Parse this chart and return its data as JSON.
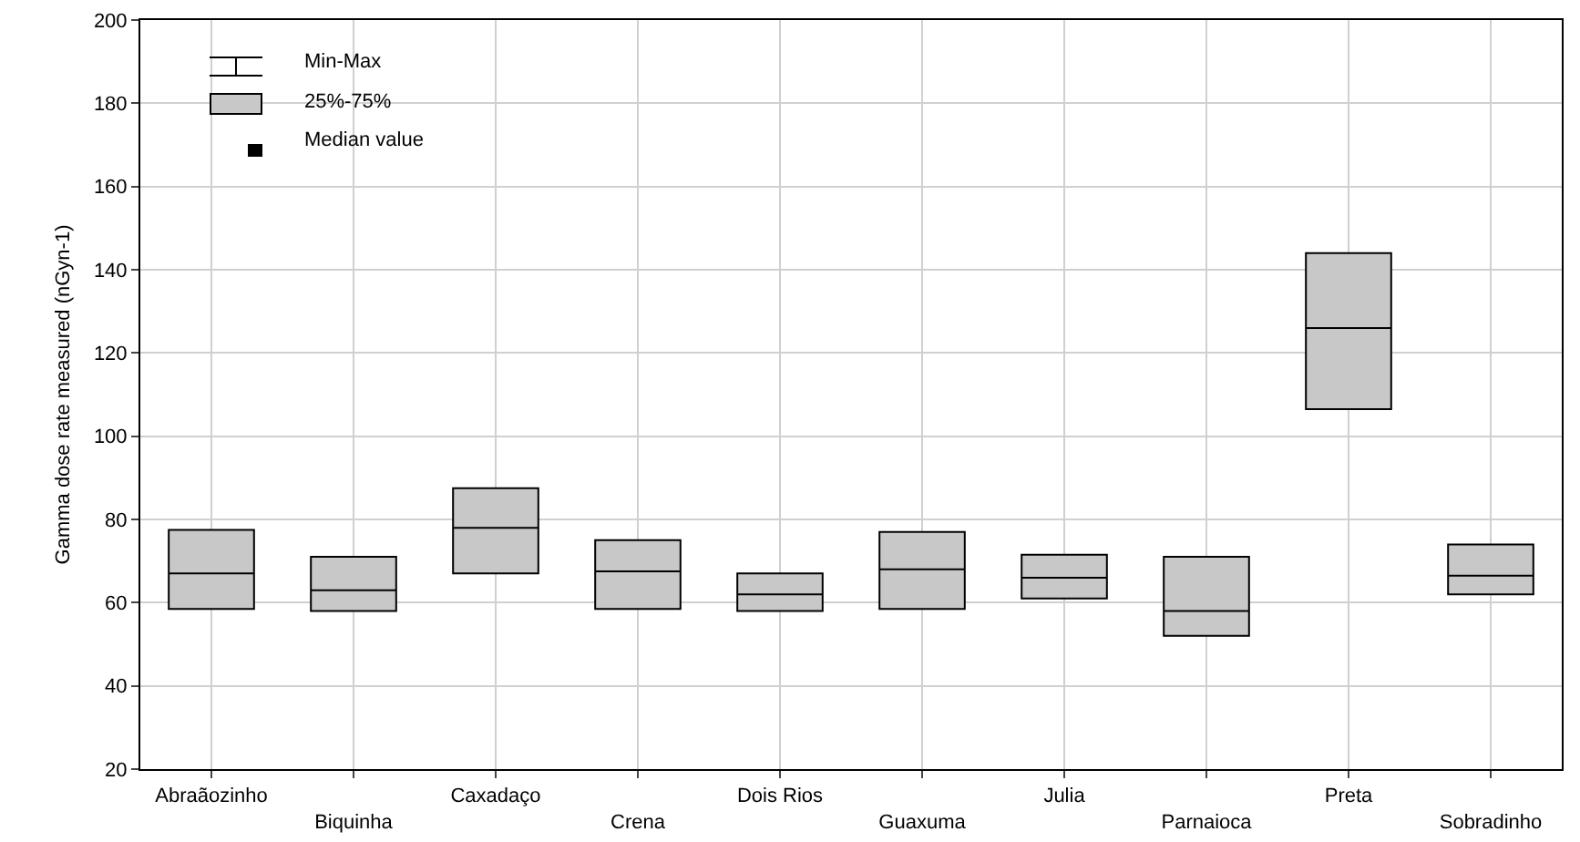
{
  "chart_data": {
    "type": "box",
    "ylabel": "Gamma dose rate measured (nGyn-1)",
    "categories": [
      "Abraãozinho",
      "Biquinha",
      "Caxadaço",
      "Crena",
      "Dois Rios",
      "Guaxuma",
      "Julia",
      "Parnaioca",
      "Preta",
      "Sobradinho"
    ],
    "boxes": [
      {
        "low": 58.5,
        "q1": 58.5,
        "median": 67,
        "q3": 77.5,
        "high": 77.5
      },
      {
        "low": 58,
        "q1": 58,
        "median": 63,
        "q3": 71,
        "high": 71
      },
      {
        "low": 67,
        "q1": 67,
        "median": 78,
        "q3": 87.5,
        "high": 87.5
      },
      {
        "low": 58.5,
        "q1": 58.5,
        "median": 67.5,
        "q3": 75,
        "high": 75
      },
      {
        "low": 58,
        "q1": 58,
        "median": 62,
        "q3": 67,
        "high": 67
      },
      {
        "low": 58.5,
        "q1": 58.5,
        "median": 68,
        "q3": 77,
        "high": 77
      },
      {
        "low": 61,
        "q1": 61,
        "median": 66,
        "q3": 71.5,
        "high": 71.5
      },
      {
        "low": 52,
        "q1": 52,
        "median": 58,
        "q3": 71,
        "high": 71
      },
      {
        "low": 106.5,
        "q1": 106.5,
        "median": 126,
        "q3": 144,
        "high": 144
      },
      {
        "low": 62,
        "q1": 62,
        "median": 66.5,
        "q3": 74,
        "high": 74
      }
    ],
    "color": "#c8c8c8",
    "ylim": [
      20,
      200
    ],
    "yticks": [
      20,
      40,
      60,
      80,
      100,
      120,
      140,
      160,
      180,
      200
    ],
    "grid": true,
    "annotations": [
      "Min-Max",
      "25%-75%",
      "Median value"
    ]
  }
}
